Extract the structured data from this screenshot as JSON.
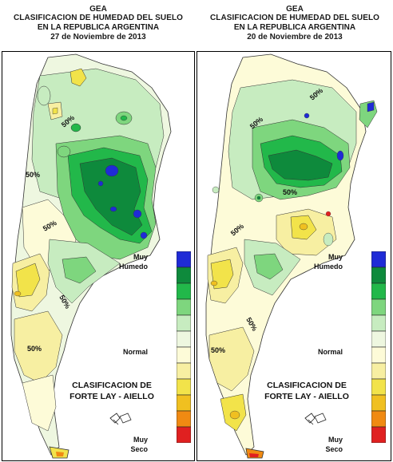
{
  "maps": [
    {
      "org": "GEA",
      "title_line1": "CLASIFICACION DE HUMEDAD DEL SUELO",
      "title_line2": "EN LA REPUBLICA ARGENTINA",
      "date": "27 de Noviembre de 2013",
      "contour_labels": [
        "50%",
        "50%",
        "50%",
        "50%",
        "50%"
      ]
    },
    {
      "org": "GEA",
      "title_line1": "CLASIFICACION DE HUMEDAD DEL SUELO",
      "title_line2": "EN LA REPUBLICA ARGENTINA",
      "date": "20 de Noviembre de 2013",
      "contour_labels": [
        "50%",
        "50%",
        "50%",
        "50%",
        "50%",
        "50%"
      ]
    }
  ],
  "legend": {
    "top_label_1": "Muy",
    "top_label_2": "Humedo",
    "middle_label": "Normal",
    "bottom_label_1": "Muy",
    "bottom_label_2": "Seco",
    "classes": [
      "#1f2bd6",
      "#0e8a3c",
      "#22b84a",
      "#7ed67e",
      "#c7ecc0",
      "#eef7e0",
      "#fdfbd8",
      "#f7efa2",
      "#f2e34a",
      "#f0c020",
      "#f08a12",
      "#e02020"
    ]
  },
  "classification_line1": "CLASIFICACION DE",
  "classification_line2": "FORTE LAY - AIELLO",
  "colors": {
    "very_wet": "#1f2bd6",
    "wet": "#0e8a3c",
    "normal": "#eef7e0",
    "dry": "#f2e34a",
    "very_dry": "#e02020"
  }
}
